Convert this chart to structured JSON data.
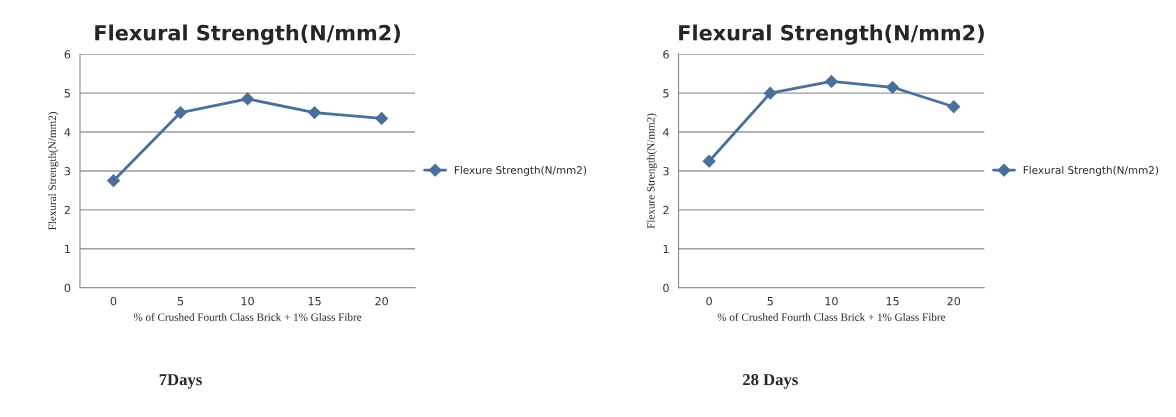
{
  "chart_data": [
    {
      "type": "line",
      "title": "Flexural Strength(N/mm2)",
      "xlabel": "% of Crushed Fourth Class Brick + 1% Glass Fibre",
      "ylabel": "Flexural Strength(N/mm2)",
      "categories": [
        "0",
        "5",
        "10",
        "15",
        "20"
      ],
      "series": [
        {
          "name": "Flexure Strength(N/mm2)",
          "color": "#4a6f9a",
          "values": [
            2.75,
            4.5,
            4.85,
            4.5,
            4.35
          ]
        }
      ],
      "ylim": [
        0,
        6
      ],
      "yticks": [
        0,
        1,
        2,
        3,
        4,
        5,
        6
      ],
      "grid": "y",
      "legend": "right",
      "marker": "diamond",
      "line_style": "solid",
      "annotations": [
        "7Days"
      ]
    },
    {
      "type": "line",
      "title": "Flexural Strength(N/mm2)",
      "xlabel": "% of Crushed Fourth Class Brick + 1% Glass Fibre",
      "ylabel": "Flexure Strength(N/mm2)",
      "categories": [
        "0",
        "5",
        "10",
        "15",
        "20"
      ],
      "series": [
        {
          "name": "Flexural Strength(N/mm2)",
          "color": "#4a6f9a",
          "values": [
            3.25,
            5.0,
            5.3,
            5.15,
            4.65
          ]
        }
      ],
      "ylim": [
        0,
        6
      ],
      "yticks": [
        0,
        1,
        2,
        3,
        4,
        5,
        6
      ],
      "grid": "y",
      "legend": "right",
      "marker": "diamond",
      "line_style": "solid",
      "annotations": [
        "28 Days"
      ]
    }
  ]
}
